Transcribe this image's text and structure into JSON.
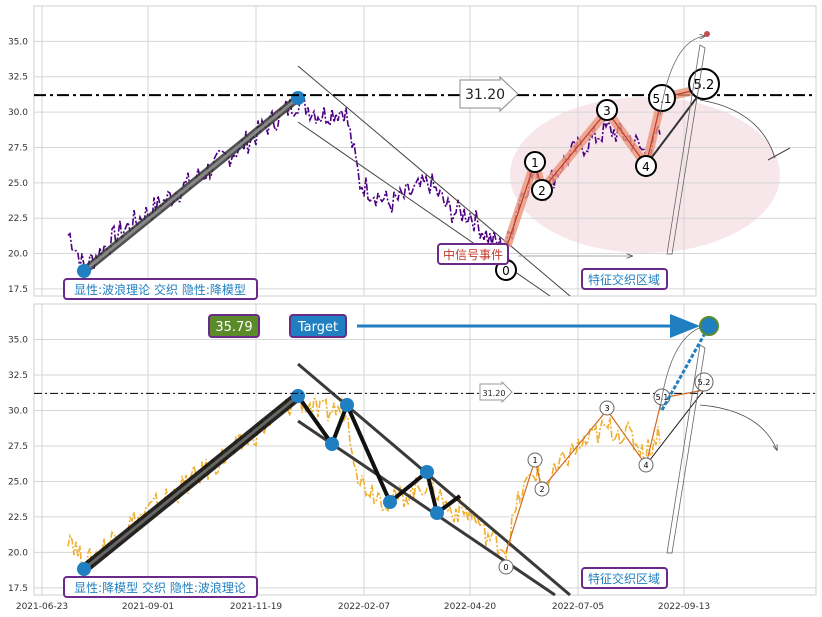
{
  "chart_data": [
    {
      "type": "line",
      "panel": "top",
      "ylim": [
        17,
        37.5
      ],
      "yticks": [
        "17.5",
        "20.0",
        "22.5",
        "25.0",
        "27.5",
        "30.0",
        "32.5",
        "35.0"
      ],
      "grid": true,
      "series": [
        {
          "color": "#4b0082",
          "style": "dash-dot"
        }
      ],
      "hline_value": 31.2,
      "annotations": {
        "price_arrow": "31.20",
        "event_box": "中信号事件",
        "zone_box": "特征交织区域",
        "pattern_box": "显性:波浪理论 交织 隐性:降模型",
        "wave_labels": [
          "0",
          "1",
          "2",
          "3",
          "4",
          "5.1",
          "5.2"
        ]
      },
      "wave_points": [
        {
          "label": "0",
          "x": "2022-04-29",
          "y": 20.4
        },
        {
          "label": "1",
          "x": "2022-05-15",
          "y": 25.8
        },
        {
          "label": "2",
          "x": "2022-05-20",
          "y": 24.2
        },
        {
          "label": "3",
          "x": "2022-07-10",
          "y": 29.3
        },
        {
          "label": "4",
          "x": "2022-08-12",
          "y": 26.9
        },
        {
          "label": "5.1",
          "x": "2022-08-30",
          "y": 29.8
        },
        {
          "label": "5.2",
          "x": "2022-09-15",
          "y": 31.2
        }
      ],
      "colors": {
        "zone": "#f4dde1",
        "wave": "#e9967a",
        "trend": "#3a3a3a"
      }
    },
    {
      "type": "line",
      "panel": "bottom",
      "ylim": [
        17,
        37.5
      ],
      "yticks": [
        "17.5",
        "20.0",
        "22.5",
        "25.0",
        "27.5",
        "30.0",
        "32.5",
        "35.0"
      ],
      "xticks": [
        "2021-06-23",
        "2021-09-01",
        "2021-11-19",
        "2022-02-07",
        "2022-04-20",
        "2022-07-05",
        "2022-09-13"
      ],
      "grid": true,
      "series": [
        {
          "color": "#f0b030",
          "style": "dash-dot"
        }
      ],
      "hline_value": 31.2,
      "annotations": {
        "price_box": "35.79",
        "target_box": "Target",
        "price_arrow": "31.20",
        "zone_box": "特征交织区域",
        "pattern_box": "显性:降模型 交织 隐性:波浪理论",
        "wave_labels": [
          "0",
          "1",
          "2",
          "3",
          "4",
          "5.1",
          "5.2"
        ]
      },
      "target_point": {
        "x": "2022-09-13",
        "y": 35.79
      },
      "zigzag_points": [
        {
          "x": "2021-12-05",
          "y": 30.9
        },
        {
          "x": "2021-12-25",
          "y": 27.6
        },
        {
          "x": "2022-01-05",
          "y": 30.2
        },
        {
          "x": "2022-02-01",
          "y": 23.5
        },
        {
          "x": "2022-02-28",
          "y": 25.6
        },
        {
          "x": "2022-03-05",
          "y": 22.8
        }
      ],
      "colors": {
        "price_box": "#5a8a2a",
        "target_box": "#1f7fc0",
        "target_point": "#1f7fc0"
      }
    }
  ]
}
